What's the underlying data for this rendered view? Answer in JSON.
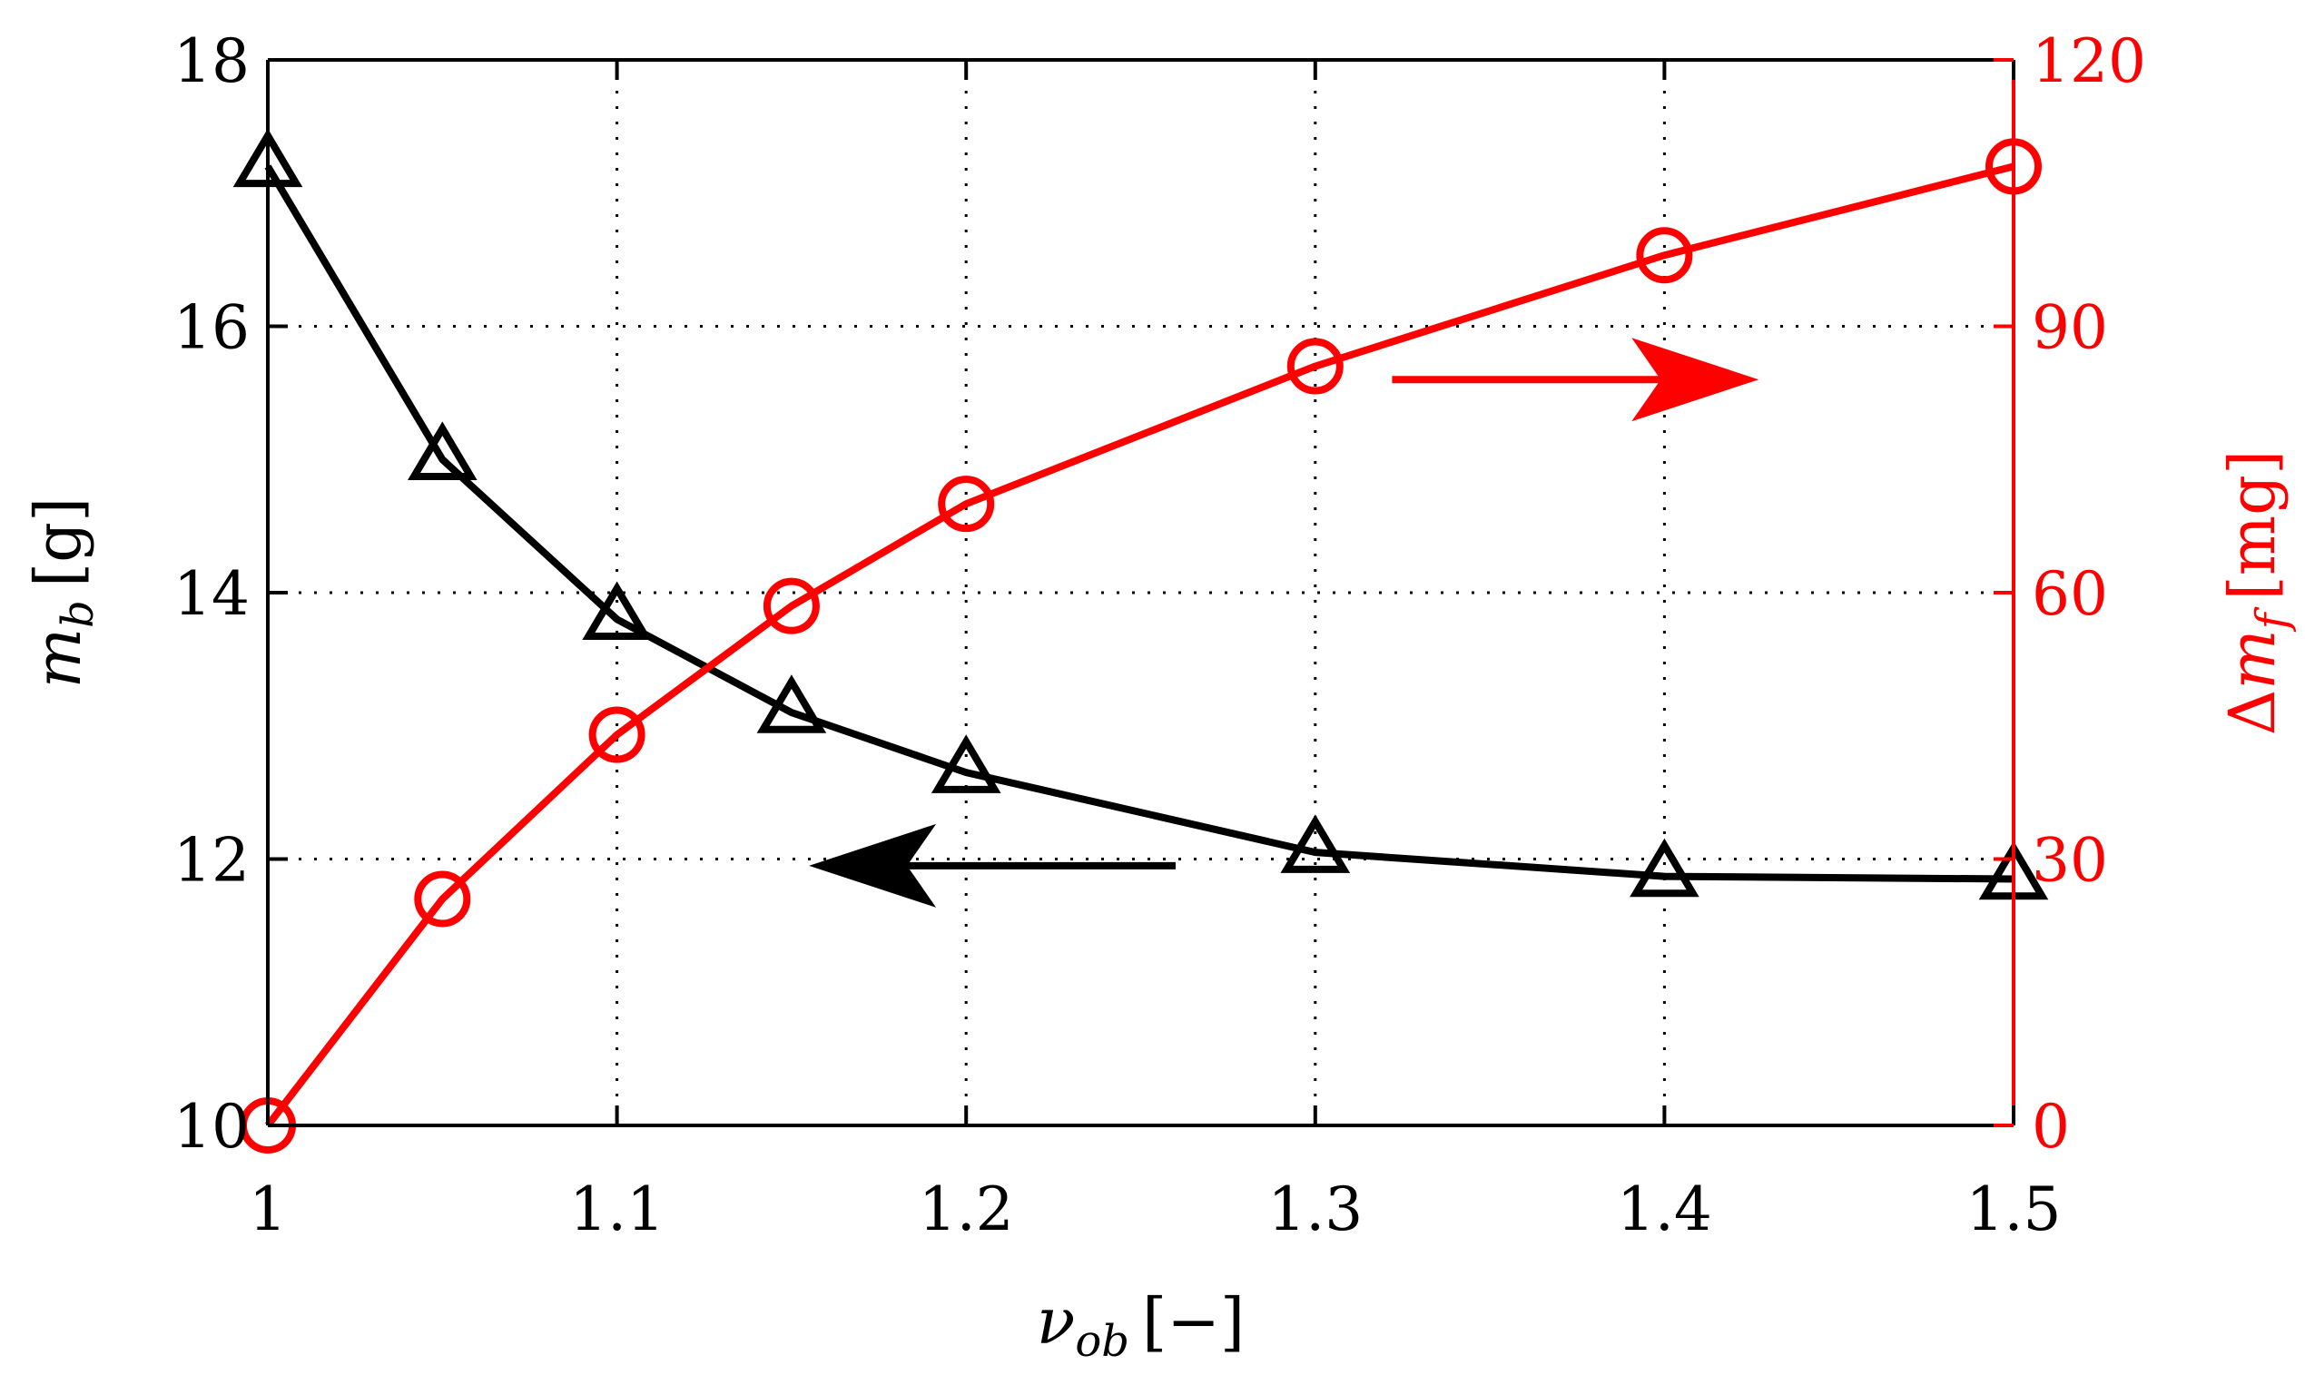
{
  "chart_data": {
    "type": "line",
    "title": "",
    "x": [
      1,
      1.05,
      1.1,
      1.15,
      1.2,
      1.3,
      1.4,
      1.5
    ],
    "xlim": [
      1,
      1.5
    ],
    "xticks": [
      1,
      1.1,
      1.2,
      1.3,
      1.4,
      1.5
    ],
    "xtick_labels": [
      "1",
      "1.1",
      "1.2",
      "1.3",
      "1.4",
      "1.5"
    ],
    "xlabel": {
      "main": "ν",
      "sub": "ob",
      "unit": "[−]"
    },
    "grid": true,
    "left_axis": {
      "ylim": [
        10,
        18
      ],
      "ticks": [
        10,
        12,
        14,
        16,
        18
      ],
      "tick_labels": [
        "10",
        "12",
        "14",
        "16",
        "18"
      ],
      "label": {
        "main": "m",
        "sub": "b",
        "unit": "[g]"
      },
      "color": "#000000"
    },
    "right_axis": {
      "ylim": [
        0,
        120
      ],
      "ticks": [
        0,
        30,
        60,
        90,
        120
      ],
      "tick_labels": [
        "0",
        "30",
        "60",
        "90",
        "120"
      ],
      "label": {
        "prefix": "Δ",
        "main": "m",
        "sub": "f",
        "unit": "[mg]"
      },
      "color": "#ff0000"
    },
    "series": [
      {
        "name": "m_b",
        "axis": "left",
        "marker": "triangle",
        "color": "#000000",
        "values": [
          17.2,
          15.0,
          13.8,
          13.1,
          12.65,
          12.05,
          11.87,
          11.85
        ]
      },
      {
        "name": "Δm_f",
        "axis": "right",
        "marker": "circle",
        "color": "#ff0000",
        "values": [
          0,
          25.5,
          44,
          58.5,
          70,
          85.5,
          98,
          108
        ]
      }
    ],
    "annotations": [
      {
        "type": "arrow",
        "direction": "left",
        "series": "m_b",
        "color": "#000000"
      },
      {
        "type": "arrow",
        "direction": "right",
        "series": "Δm_f",
        "color": "#ff0000"
      }
    ]
  }
}
